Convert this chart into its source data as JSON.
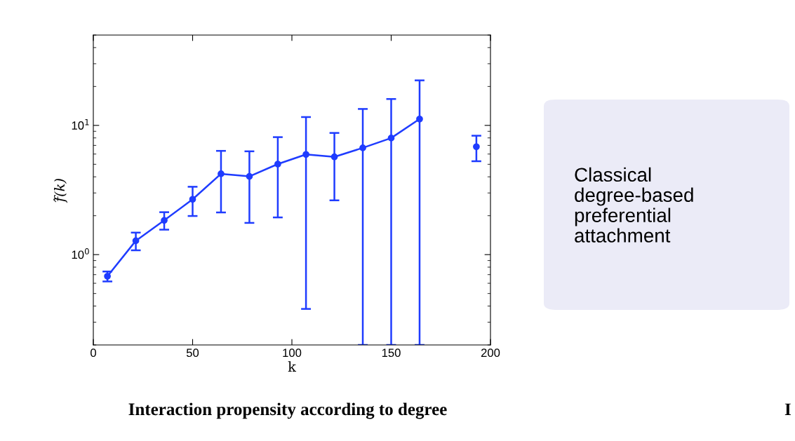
{
  "chart_data": {
    "type": "line",
    "title": "Interaction propensity according to degree",
    "xlabel": "k",
    "ylabel": "f̂(k)",
    "annotations": [
      "Classical\ndegree-based\npreferential\nattachment",
      "I"
    ],
    "series": [
      {
        "color": "#1f3cff",
        "x": [
          7.1,
          21.4,
          35.7,
          50,
          64.3,
          78.6,
          92.9,
          107.1,
          121.4,
          135.7,
          150,
          164.3
        ],
        "values": [
          0.68,
          1.28,
          1.84,
          2.68,
          4.22,
          4.03,
          5.02,
          5.96,
          5.71,
          6.7,
          7.98,
          11.2
        ],
        "errors": [
          [
            0.62,
            0.74
          ],
          [
            1.08,
            1.48
          ],
          [
            1.56,
            2.13
          ],
          [
            1.99,
            3.35
          ],
          [
            2.12,
            6.35
          ],
          [
            1.76,
            6.3
          ],
          [
            1.94,
            8.11
          ],
          [
            0.38,
            11.6
          ],
          [
            2.63,
            8.74
          ],
          [
            0.2,
            13.4
          ],
          [
            0.2,
            16.0
          ],
          [
            0.2,
            22.3
          ]
        ]
      },
      {
        "type": "scatter",
        "color": "#1f3cff",
        "x": [
          192.9
        ],
        "values": [
          6.84
        ],
        "errors": [
          [
            5.28,
            8.32
          ]
        ]
      }
    ],
    "marker": "circle",
    "line_style": "solid",
    "log": "y",
    "grid": false,
    "legend": false,
    "xlim": [
      0,
      200
    ],
    "xticks": [
      0,
      50,
      100,
      150,
      200
    ],
    "ylim": [
      0.2,
      50
    ],
    "yticks": [
      {
        "value": 1,
        "label": "10$^{0}$"
      },
      {
        "value": 10,
        "label": "10$^{1}$"
      }
    ]
  }
}
